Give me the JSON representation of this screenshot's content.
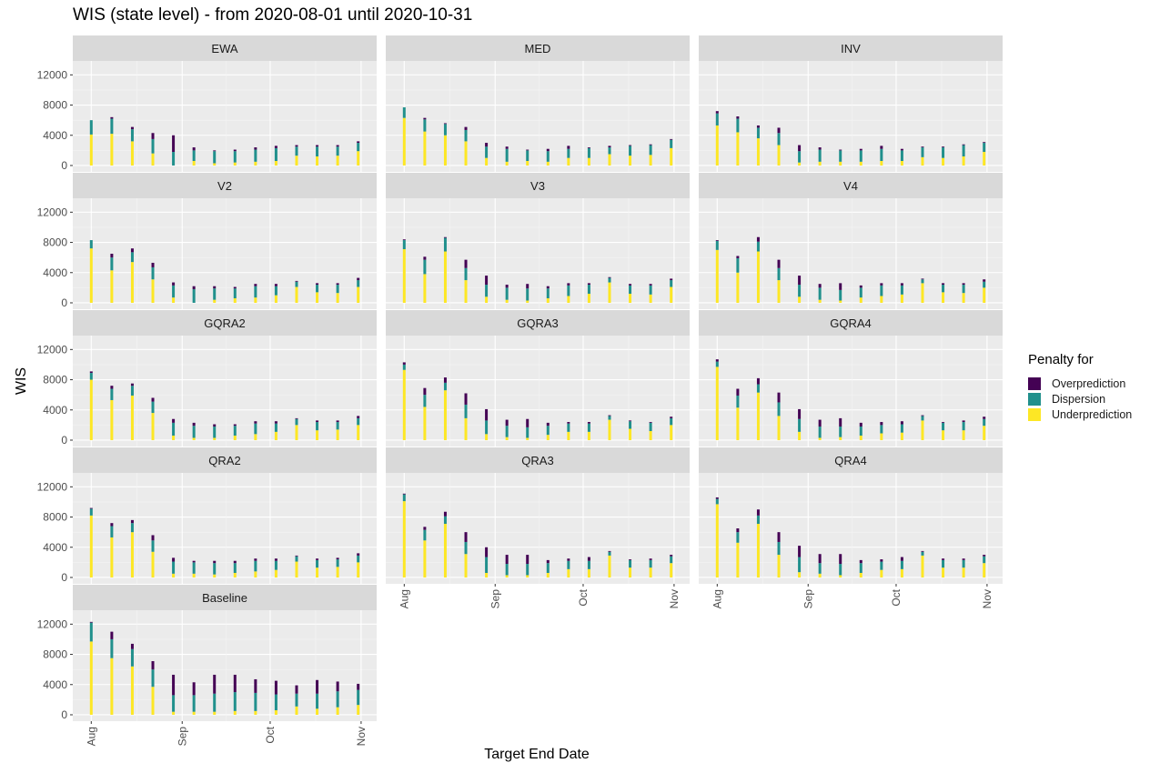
{
  "title": "WIS (state level) - from 2020-08-01 until 2020-10-31",
  "xlabel": "Target End Date",
  "ylabel": "WIS",
  "legend": {
    "title": "Penalty for",
    "items": [
      {
        "label": "Overprediction",
        "color": "#440154"
      },
      {
        "label": "Dispersion",
        "color": "#21908C"
      },
      {
        "label": "Underprediction",
        "color": "#FDE725"
      }
    ]
  },
  "chart_data": {
    "type": "bar",
    "stacked": true,
    "facets_layout": "3 columns, 5 rows",
    "legend_position": "right",
    "grid": true,
    "ylim": [
      0,
      13000
    ],
    "y_ticks": [
      0,
      4000,
      8000,
      12000
    ],
    "x_ticks": [
      {
        "label": "Aug",
        "date": "2020-08-01"
      },
      {
        "label": "Sep",
        "date": "2020-09-01"
      },
      {
        "label": "Oct",
        "date": "2020-10-01"
      },
      {
        "label": "Nov",
        "date": "2020-11-01"
      }
    ],
    "dates": [
      "2020-08-01",
      "2020-08-08",
      "2020-08-15",
      "2020-08-22",
      "2020-08-29",
      "2020-09-05",
      "2020-09-12",
      "2020-09-19",
      "2020-09-26",
      "2020-10-03",
      "2020-10-10",
      "2020-10-17",
      "2020-10-24",
      "2020-10-31"
    ],
    "series_order": [
      "Underprediction",
      "Dispersion",
      "Overprediction"
    ],
    "facets": [
      {
        "name": "EWA",
        "under": [
          4100,
          4200,
          3200,
          1600,
          0,
          600,
          300,
          400,
          500,
          600,
          1300,
          1200,
          1300,
          1900
        ],
        "disp": [
          1900,
          2000,
          1600,
          1900,
          1800,
          1400,
          1600,
          1500,
          1600,
          1700,
          1200,
          1300,
          1200,
          1100
        ],
        "over": [
          0,
          200,
          300,
          800,
          2200,
          400,
          100,
          200,
          300,
          300,
          200,
          200,
          200,
          200
        ]
      },
      {
        "name": "MED",
        "under": [
          6300,
          4500,
          4000,
          3200,
          1000,
          500,
          600,
          500,
          1000,
          1000,
          1500,
          1300,
          1400,
          2300
        ],
        "disp": [
          1400,
          1600,
          1500,
          1500,
          1500,
          1700,
          1400,
          1400,
          1200,
          1300,
          900,
          1300,
          1300,
          1100
        ],
        "over": [
          0,
          200,
          100,
          400,
          500,
          300,
          100,
          300,
          400,
          100,
          200,
          100,
          100,
          100
        ]
      },
      {
        "name": "INV",
        "under": [
          5300,
          4400,
          3600,
          2700,
          400,
          500,
          500,
          500,
          600,
          600,
          1100,
          1000,
          1200,
          1800
        ],
        "disp": [
          1600,
          1800,
          1400,
          1600,
          1500,
          1600,
          1500,
          1500,
          1600,
          1400,
          1300,
          1400,
          1500,
          1200
        ],
        "over": [
          300,
          300,
          300,
          700,
          800,
          300,
          100,
          200,
          400,
          200,
          100,
          100,
          100,
          100
        ]
      },
      {
        "name": "V2",
        "under": [
          7200,
          4300,
          5400,
          3100,
          700,
          0,
          400,
          600,
          700,
          1000,
          2100,
          1400,
          1300,
          2100
        ],
        "disp": [
          1100,
          1700,
          1300,
          1600,
          1600,
          1800,
          1500,
          1300,
          1500,
          1200,
          700,
          1000,
          1100,
          900
        ],
        "over": [
          0,
          500,
          500,
          600,
          400,
          400,
          300,
          200,
          300,
          300,
          100,
          200,
          200,
          300
        ]
      },
      {
        "name": "V3",
        "under": [
          7100,
          3800,
          6800,
          3000,
          800,
          400,
          300,
          600,
          900,
          1200,
          2700,
          1200,
          1100,
          2100
        ],
        "disp": [
          1200,
          1900,
          1800,
          1600,
          1600,
          1600,
          1600,
          1300,
          1400,
          1200,
          600,
          1100,
          1200,
          900
        ],
        "over": [
          100,
          400,
          100,
          1100,
          1200,
          400,
          600,
          300,
          300,
          200,
          100,
          200,
          200,
          200
        ]
      },
      {
        "name": "V4",
        "under": [
          7000,
          4000,
          6800,
          3000,
          800,
          400,
          300,
          700,
          900,
          1100,
          2600,
          1400,
          1300,
          2000
        ],
        "disp": [
          1200,
          1900,
          1300,
          1600,
          1600,
          1600,
          1400,
          1300,
          1400,
          1200,
          500,
          1000,
          1100,
          800
        ],
        "over": [
          100,
          300,
          600,
          1100,
          1200,
          500,
          900,
          300,
          300,
          300,
          100,
          200,
          200,
          300
        ]
      },
      {
        "name": "GQRA2",
        "under": [
          8000,
          5300,
          5900,
          3600,
          600,
          300,
          300,
          600,
          800,
          1100,
          2000,
          1300,
          1400,
          2000
        ],
        "disp": [
          900,
          1500,
          1300,
          1500,
          1700,
          1600,
          1500,
          1300,
          1400,
          1100,
          800,
          1100,
          1000,
          900
        ],
        "over": [
          200,
          400,
          300,
          500,
          500,
          400,
          300,
          200,
          300,
          300,
          100,
          200,
          200,
          300
        ]
      },
      {
        "name": "GQRA3",
        "under": [
          9300,
          4400,
          6600,
          2900,
          800,
          400,
          300,
          700,
          1100,
          1100,
          2700,
          1500,
          1200,
          2000
        ],
        "disp": [
          700,
          1600,
          1000,
          1800,
          1800,
          1500,
          1400,
          1200,
          1100,
          1100,
          500,
          1000,
          1100,
          900
        ],
        "over": [
          300,
          900,
          700,
          1500,
          1500,
          800,
          1100,
          400,
          200,
          200,
          100,
          100,
          100,
          200
        ]
      },
      {
        "name": "GQRA4",
        "under": [
          9700,
          4300,
          6300,
          3200,
          1100,
          300,
          400,
          600,
          900,
          1000,
          2600,
          1300,
          1300,
          1900
        ],
        "disp": [
          700,
          1600,
          1100,
          1800,
          1700,
          1500,
          1400,
          1200,
          1100,
          1100,
          600,
          1000,
          1100,
          900
        ],
        "over": [
          300,
          900,
          800,
          1300,
          1300,
          900,
          1100,
          500,
          400,
          400,
          100,
          100,
          200,
          300
        ]
      },
      {
        "name": "QRA2",
        "under": [
          8200,
          5300,
          6000,
          3400,
          500,
          500,
          400,
          600,
          800,
          1000,
          2100,
          1300,
          1400,
          2000
        ],
        "disp": [
          900,
          1500,
          1200,
          1500,
          1600,
          1500,
          1500,
          1300,
          1400,
          1200,
          700,
          1000,
          1000,
          900
        ],
        "over": [
          100,
          400,
          400,
          700,
          500,
          200,
          300,
          300,
          300,
          300,
          100,
          200,
          200,
          300
        ]
      },
      {
        "name": "QRA3",
        "under": [
          10100,
          4900,
          7100,
          3100,
          600,
          300,
          300,
          600,
          1100,
          1100,
          2900,
          1300,
          1300,
          1900
        ],
        "disp": [
          900,
          1400,
          1000,
          1600,
          2100,
          1500,
          1500,
          1300,
          1100,
          1100,
          500,
          1000,
          1000,
          900
        ],
        "over": [
          100,
          400,
          600,
          1300,
          1300,
          1200,
          1200,
          400,
          300,
          500,
          100,
          100,
          200,
          200
        ]
      },
      {
        "name": "QRA4",
        "under": [
          9700,
          4600,
          7100,
          3000,
          700,
          500,
          300,
          600,
          1000,
          1100,
          2900,
          1300,
          1300,
          1900
        ],
        "disp": [
          700,
          1400,
          1100,
          1700,
          2000,
          1400,
          1500,
          1300,
          1100,
          1100,
          500,
          1000,
          1000,
          900
        ],
        "over": [
          200,
          500,
          800,
          1300,
          1500,
          1200,
          1300,
          400,
          300,
          500,
          100,
          200,
          200,
          200
        ]
      },
      {
        "name": "Baseline",
        "under": [
          9700,
          7500,
          6400,
          3700,
          400,
          400,
          400,
          500,
          500,
          600,
          1100,
          800,
          1000,
          1300
        ],
        "disp": [
          2500,
          2500,
          2300,
          2300,
          2200,
          2200,
          2400,
          2500,
          2400,
          2100,
          1700,
          2000,
          2100,
          2000
        ],
        "over": [
          100,
          1000,
          700,
          1100,
          2700,
          1700,
          2500,
          2300,
          1800,
          1800,
          1100,
          1800,
          1300,
          800
        ]
      }
    ]
  }
}
